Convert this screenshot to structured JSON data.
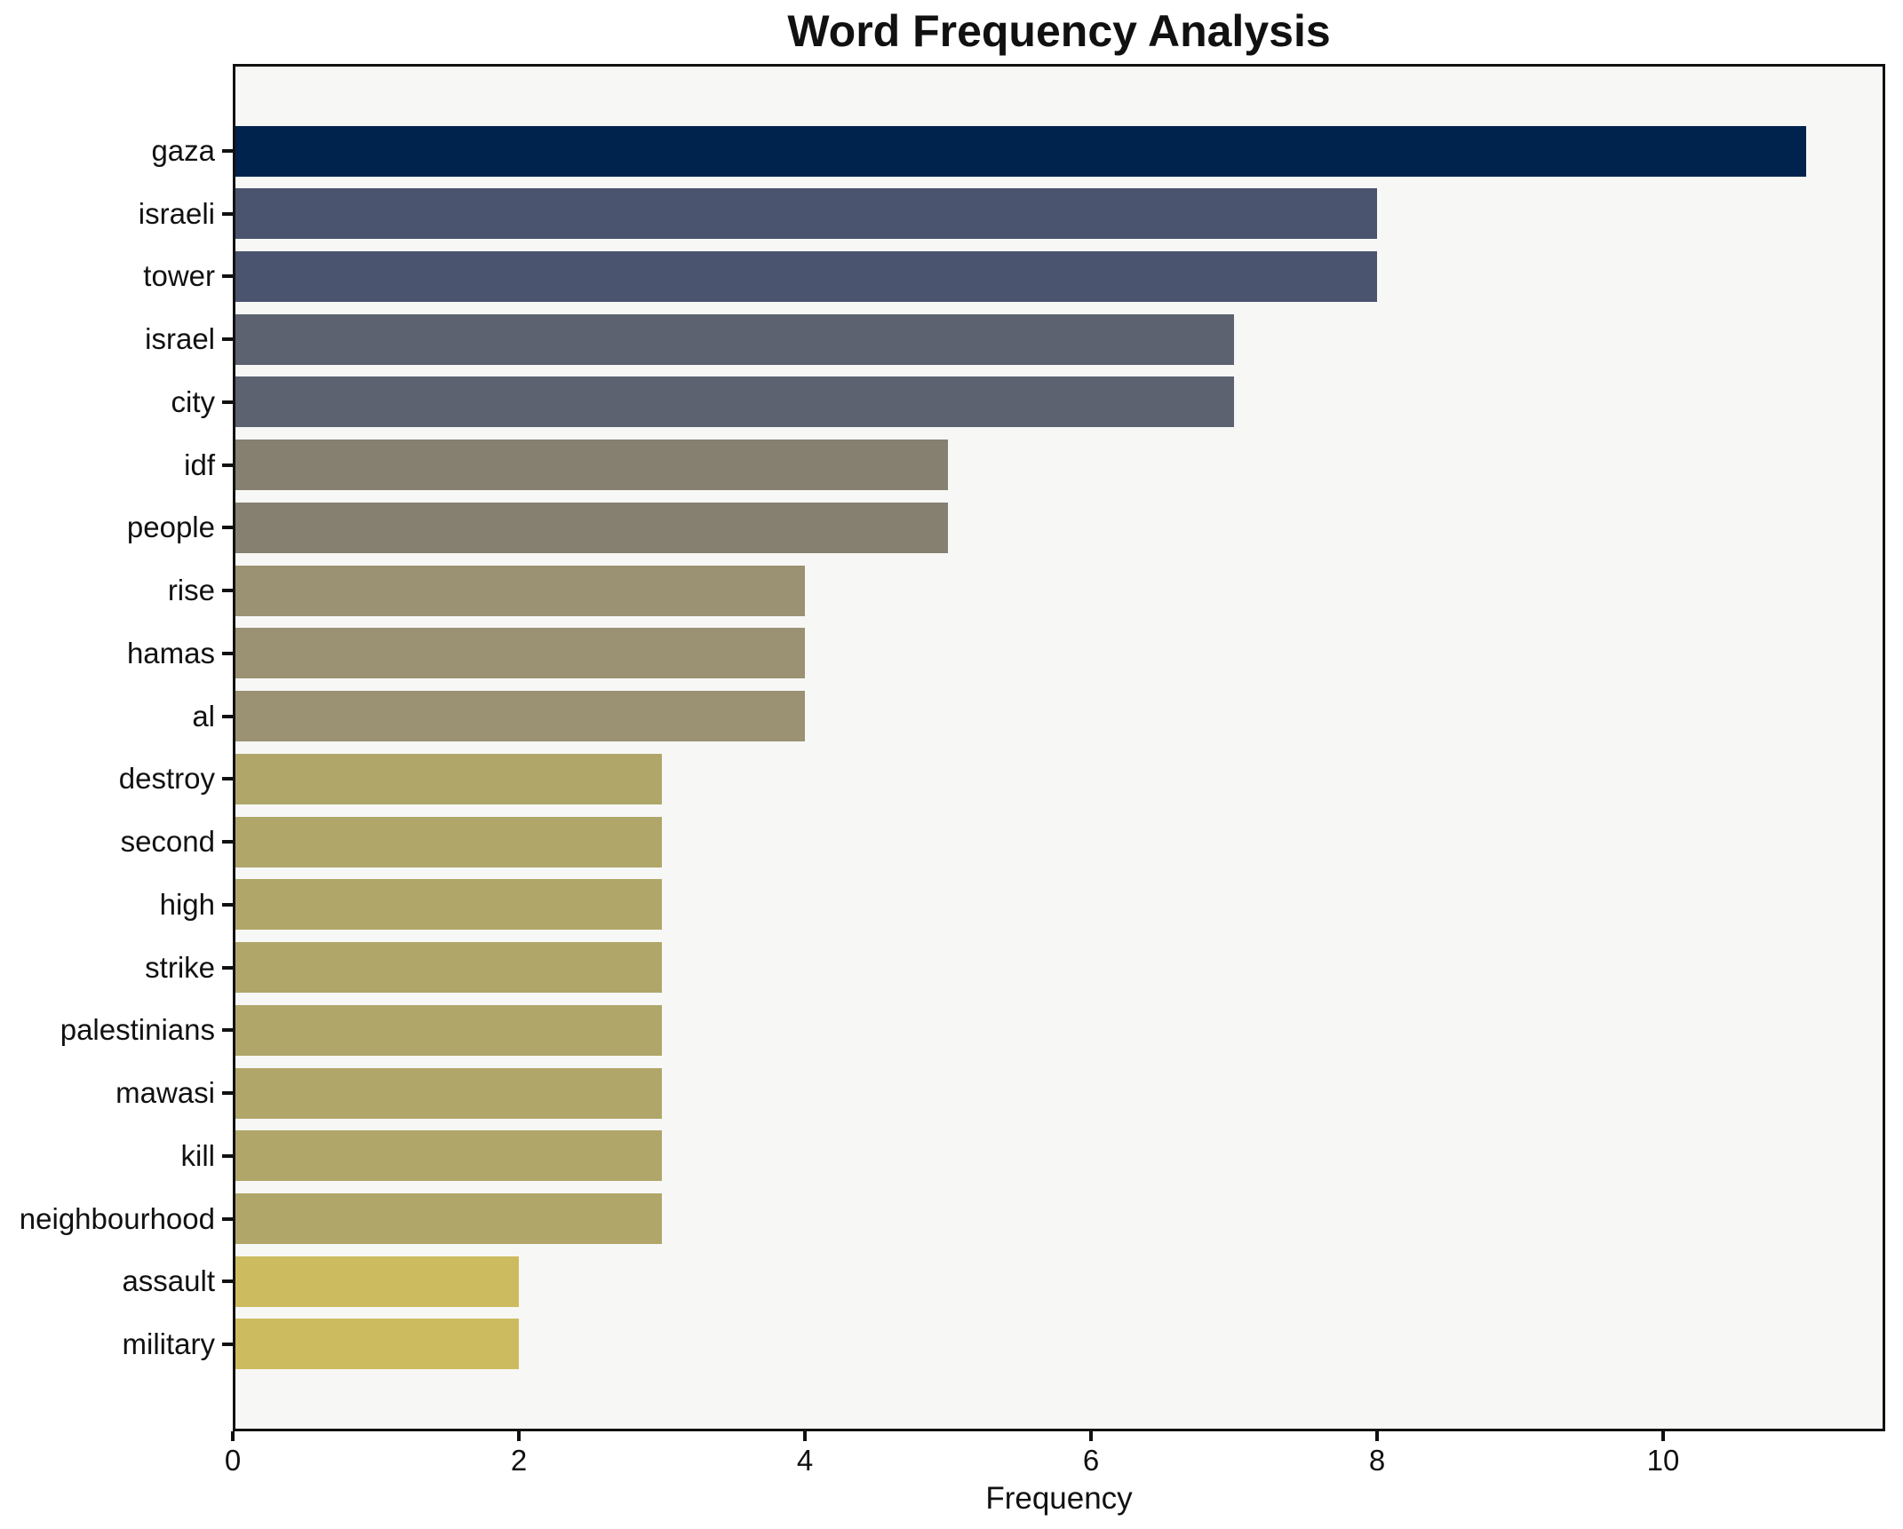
{
  "figure": {
    "background": "#ffffff",
    "plot_background": "#f7f7f6",
    "spine_color": "#111111",
    "text_color": "#111111"
  },
  "chart_data": {
    "type": "bar",
    "orientation": "horizontal",
    "title": "Word Frequency Analysis",
    "xlabel": "Frequency",
    "ylabel": "",
    "categories": [
      "gaza",
      "israeli",
      "tower",
      "israel",
      "city",
      "idf",
      "people",
      "rise",
      "hamas",
      "al",
      "destroy",
      "second",
      "high",
      "strike",
      "palestinians",
      "mawasi",
      "kill",
      "neighbourhood",
      "assault",
      "military"
    ],
    "values": [
      11,
      8,
      8,
      7,
      7,
      5,
      5,
      4,
      4,
      4,
      3,
      3,
      3,
      3,
      3,
      3,
      3,
      3,
      2,
      2
    ],
    "bar_colors": [
      "#00234e",
      "#4b546e",
      "#4b546e",
      "#5c6270",
      "#5c6270",
      "#868071",
      "#868071",
      "#9b9274",
      "#9b9274",
      "#9b9274",
      "#b0a669",
      "#b0a669",
      "#b0a669",
      "#b0a669",
      "#b0a669",
      "#b0a669",
      "#b0a669",
      "#b0a669",
      "#cdbb60",
      "#cdbb60"
    ],
    "x_ticks": [
      0,
      2,
      4,
      6,
      8,
      10
    ],
    "xlim": [
      0,
      11.55
    ],
    "grid": false,
    "legend": false,
    "bars_descending": true
  }
}
